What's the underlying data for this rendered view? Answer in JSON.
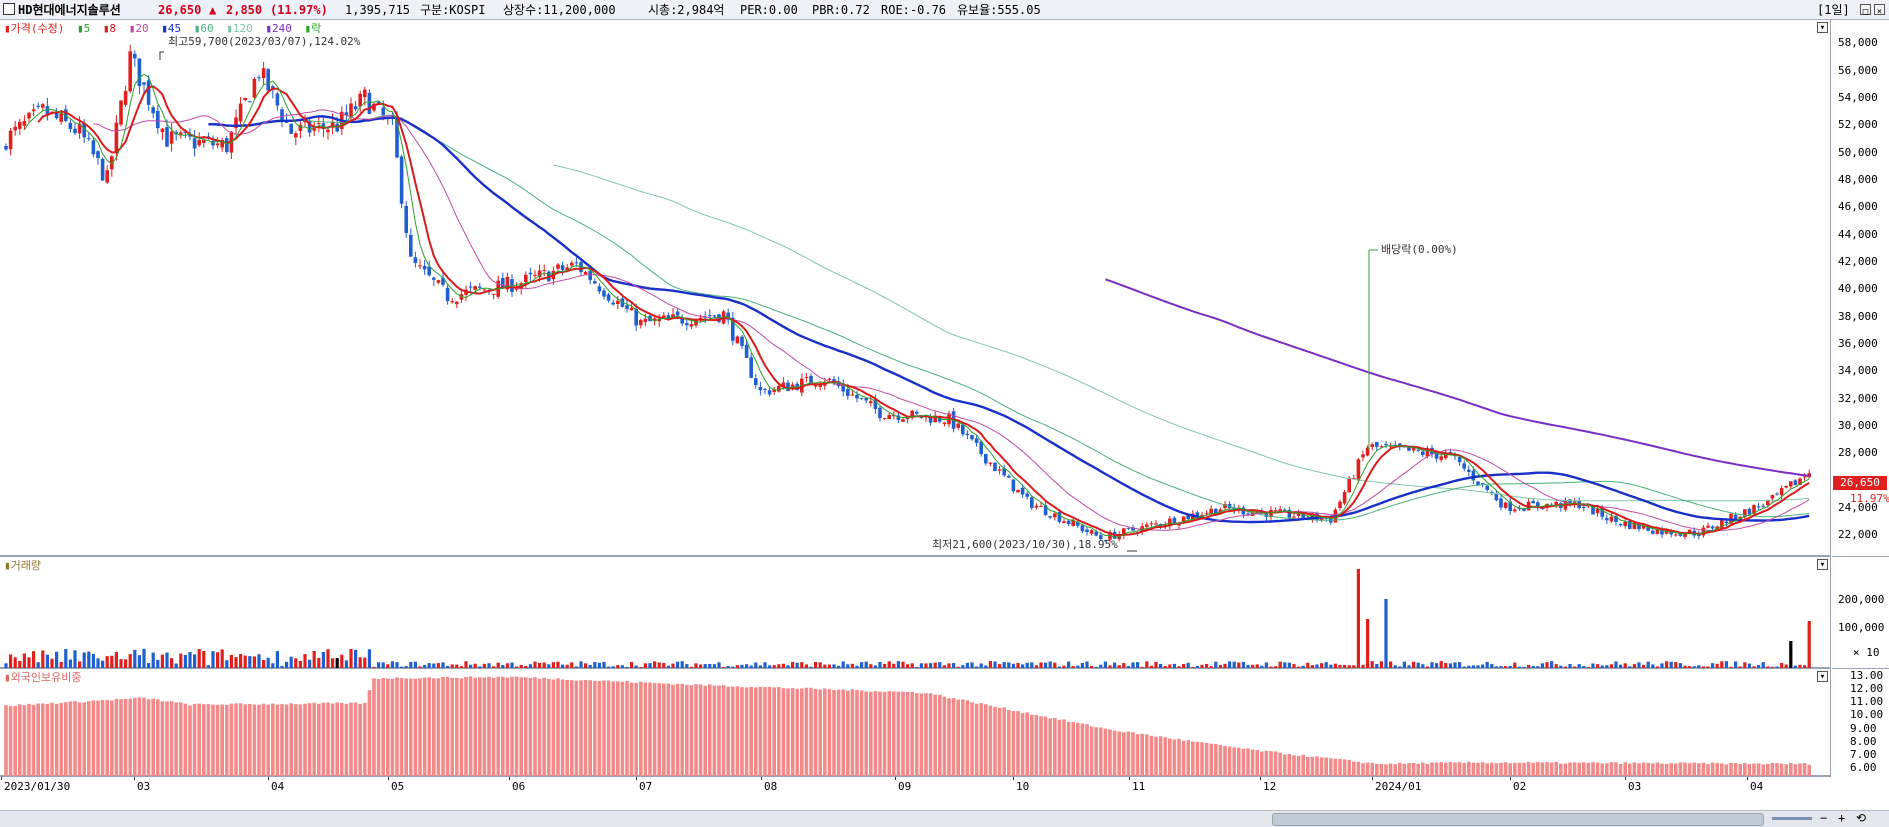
{
  "header": {
    "stock_name": "HD현대에너지솔루션",
    "price": "26,650",
    "change_arrow": "▲",
    "change": "2,850",
    "change_pct": "(11.97%)",
    "volume": "1,395,715",
    "market": "구분:KOSPI",
    "shares": "상장수:11,200,000",
    "market_cap": "시총:2,984억",
    "per": "PER:0.00",
    "pbr": "PBR:0.72",
    "roe": "ROE:-0.76",
    "float": "유보율:555.05",
    "period": "[1일]"
  },
  "price_pane": {
    "legend": {
      "price_label": "가격(수정)",
      "ma_periods": [
        "5",
        "8",
        "20",
        "45",
        "60",
        "120",
        "240"
      ],
      "extra": "락"
    },
    "colors": {
      "up": "#e0201e",
      "down": "#1f5fd0",
      "ma5": "#2ca02c",
      "ma8": "#d81b1b",
      "ma20": "#c24aa3",
      "ma45": "#1830c8",
      "ma60": "#49b07a",
      "ma120": "#7fc7a8",
      "ma240": "#7a2fc2"
    },
    "high_label": "최고59,700(2023/03/07),124.02%",
    "low_label": "최저21,600(2023/10/30),18.95%",
    "dividend_label": "배당락(0.00%)",
    "last_price_tag": "26,650",
    "last_pct_tag": "11.97%",
    "y_ticks": [
      "58,000",
      "56,000",
      "54,000",
      "52,000",
      "50,000",
      "48,000",
      "46,000",
      "44,000",
      "42,000",
      "40,000",
      "38,000",
      "36,000",
      "34,000",
      "32,000",
      "30,000",
      "28,000",
      "26,000",
      "24,000",
      "22,000"
    ],
    "ylim": [
      20500,
      59700
    ]
  },
  "volume_pane": {
    "label": "거래량",
    "y_ticks": [
      "200,000",
      "100,000"
    ],
    "unit": "× 10"
  },
  "foreign_pane": {
    "label": "외국인보유비중",
    "bar_color": "#f28a8a",
    "y_ticks": [
      "13.00",
      "12.00",
      "11.00",
      "10.00",
      "9.00",
      "8.00",
      "7.00",
      "6.00"
    ]
  },
  "x_axis": {
    "labels": [
      "2023/01/30",
      "03",
      "04",
      "05",
      "06",
      "07",
      "08",
      "09",
      "10",
      "11",
      "12",
      "2024/01",
      "02",
      "03",
      "04"
    ]
  },
  "chart_data": {
    "type": "bar",
    "title": "",
    "series": [
      {
        "name": "가격(수정)",
        "anchors": [
          [
            0,
            51000
          ],
          [
            8,
            53000
          ],
          [
            16,
            51500
          ],
          [
            22,
            48000
          ],
          [
            27,
            57000
          ],
          [
            35,
            51000
          ],
          [
            48,
            50500
          ],
          [
            55,
            56000
          ],
          [
            62,
            51500
          ],
          [
            72,
            52000
          ],
          [
            78,
            54000
          ],
          [
            84,
            51800
          ],
          [
            88,
            42000
          ],
          [
            96,
            39500
          ],
          [
            112,
            40500
          ],
          [
            124,
            41800
          ],
          [
            138,
            37500
          ],
          [
            156,
            38200
          ],
          [
            164,
            32500
          ],
          [
            178,
            33500
          ],
          [
            190,
            31000
          ],
          [
            205,
            30500
          ],
          [
            222,
            24500
          ],
          [
            238,
            21800
          ],
          [
            264,
            24000
          ],
          [
            288,
            23200
          ],
          [
            296,
            28500
          ],
          [
            304,
            28200
          ],
          [
            314,
            27800
          ],
          [
            326,
            24100
          ],
          [
            342,
            24300
          ],
          [
            350,
            23000
          ],
          [
            360,
            22300
          ],
          [
            368,
            22200
          ],
          [
            384,
            24600
          ],
          [
            392,
            26650
          ]
        ]
      },
      {
        "name": "외국인보유비중",
        "anchors": [
          [
            0,
            10.8
          ],
          [
            30,
            11.4
          ],
          [
            40,
            10.9
          ],
          [
            78,
            11.0
          ],
          [
            80,
            12.9
          ],
          [
            110,
            13.0
          ],
          [
            150,
            12.4
          ],
          [
            200,
            11.8
          ],
          [
            240,
            9.0
          ],
          [
            270,
            7.5
          ],
          [
            298,
            6.4
          ],
          [
            320,
            6.5
          ],
          [
            392,
            6.4
          ]
        ]
      }
    ]
  },
  "window_controls": {
    "close_mark": "×",
    "max_mark": "□",
    "collapse_mark": "▾",
    "zoom_in": "+",
    "zoom_out": "−",
    "reset": "⟲"
  }
}
